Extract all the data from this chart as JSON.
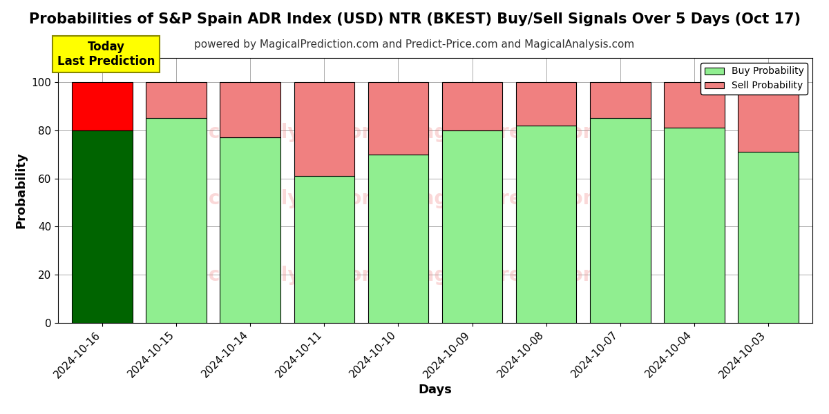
{
  "title": "Probabilities of S&P Spain ADR Index (USD) NTR (BKEST) Buy/Sell Signals Over 5 Days (Oct 17)",
  "subtitle": "powered by MagicalPrediction.com and Predict-Price.com and MagicalAnalysis.com",
  "xlabel": "Days",
  "ylabel": "Probability",
  "dates": [
    "2024-10-16",
    "2024-10-15",
    "2024-10-14",
    "2024-10-11",
    "2024-10-10",
    "2024-10-09",
    "2024-10-08",
    "2024-10-07",
    "2024-10-04",
    "2024-10-03"
  ],
  "buy_values": [
    80,
    85,
    77,
    61,
    70,
    80,
    82,
    85,
    81,
    71
  ],
  "sell_values": [
    20,
    15,
    23,
    39,
    30,
    20,
    18,
    15,
    19,
    29
  ],
  "first_bar_buy_color": "#006400",
  "first_bar_sell_color": "#FF0000",
  "other_bar_buy_color": "#90EE90",
  "other_bar_sell_color": "#F08080",
  "bar_edge_color": "#000000",
  "today_box_color": "#FFFF00",
  "today_box_text": "Today\nLast Prediction",
  "today_box_text_color": "#000000",
  "legend_buy_color": "#90EE90",
  "legend_sell_color": "#F08080",
  "legend_buy_label": "Buy Probability",
  "legend_sell_label": "Sell Probability",
  "ylim": [
    0,
    110
  ],
  "dashed_line_y": 110,
  "grid_color": "#AAAAAA",
  "background_color": "#FFFFFF",
  "title_fontsize": 15,
  "subtitle_fontsize": 11,
  "axis_label_fontsize": 13,
  "tick_fontsize": 11,
  "watermark_color": "#F08080",
  "bar_width": 0.82
}
